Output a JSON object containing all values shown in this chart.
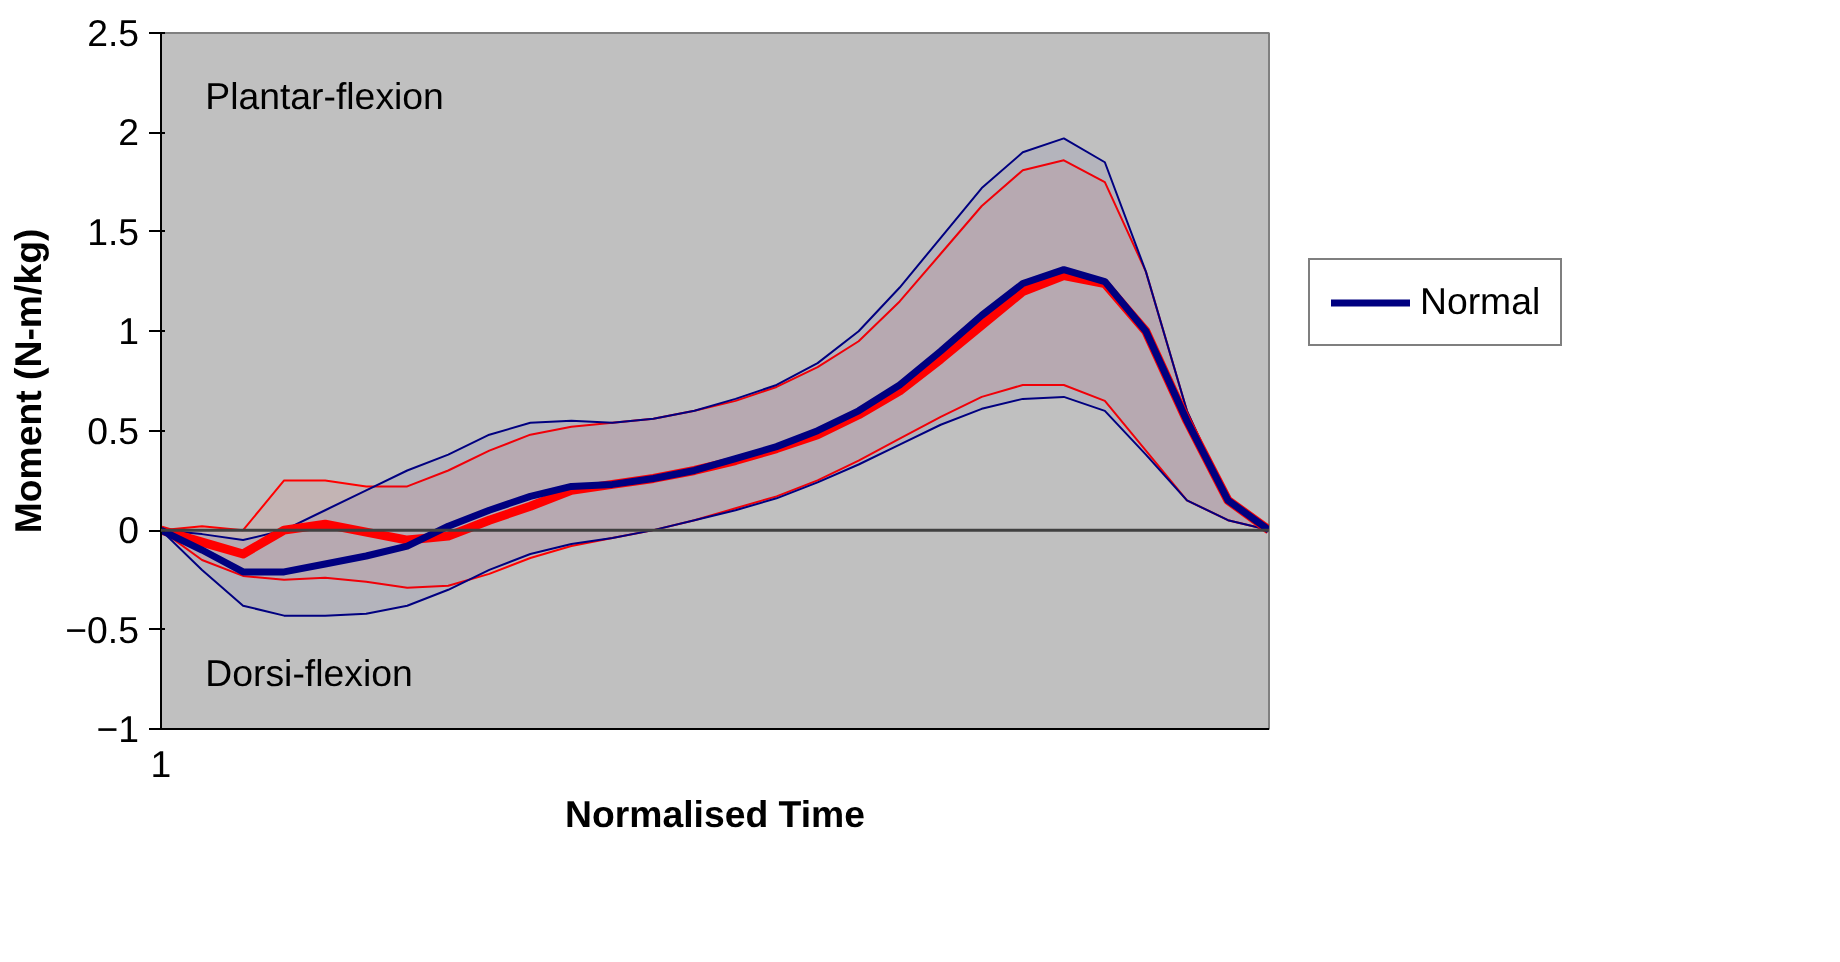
{
  "chart_data": {
    "type": "line",
    "xlabel": "Normalised Time",
    "ylabel": "Moment (N-m/kg)",
    "categories": [
      "1",
      null,
      null,
      null,
      null,
      null,
      null,
      null,
      null,
      null,
      null,
      null,
      null,
      null,
      null,
      null,
      null,
      null,
      null,
      null,
      null,
      null,
      null,
      null,
      null,
      null,
      null,
      null
    ],
    "series": [
      {
        "color": "#ff0000",
        "values": [
          0,
          -0.06,
          -0.12,
          0.0,
          0.03,
          -0.01,
          -0.05,
          -0.03,
          0.05,
          0.12,
          0.2,
          0.23,
          0.26,
          0.3,
          0.35,
          0.41,
          0.48,
          0.58,
          0.7,
          0.86,
          1.03,
          1.2,
          1.28,
          1.24,
          1.0,
          0.55,
          0.15,
          0
        ],
        "upper": [
          0,
          0.02,
          0.0,
          0.25,
          0.25,
          0.22,
          0.22,
          0.3,
          0.4,
          0.48,
          0.52,
          0.54,
          0.56,
          0.6,
          0.65,
          0.72,
          0.82,
          0.95,
          1.15,
          1.39,
          1.63,
          1.81,
          1.86,
          1.75,
          1.3,
          0.6,
          0.15,
          0
        ],
        "lower": [
          0,
          -0.15,
          -0.23,
          -0.25,
          -0.24,
          -0.26,
          -0.29,
          -0.28,
          -0.22,
          -0.14,
          -0.08,
          -0.04,
          0.0,
          0.05,
          0.11,
          0.17,
          0.25,
          0.35,
          0.46,
          0.57,
          0.67,
          0.73,
          0.73,
          0.65,
          0.4,
          0.15,
          0.05,
          0
        ]
      },
      {
        "name": "Normal",
        "color": "#000080",
        "values": [
          0,
          -0.1,
          -0.21,
          -0.21,
          -0.17,
          -0.13,
          -0.08,
          0.02,
          0.1,
          0.17,
          0.22,
          0.23,
          0.26,
          0.3,
          0.36,
          0.42,
          0.5,
          0.6,
          0.73,
          0.9,
          1.08,
          1.24,
          1.31,
          1.25,
          1.0,
          0.55,
          0.15,
          0
        ],
        "upper": [
          0,
          -0.02,
          -0.05,
          0.0,
          0.1,
          0.2,
          0.3,
          0.38,
          0.48,
          0.54,
          0.55,
          0.54,
          0.56,
          0.6,
          0.66,
          0.73,
          0.84,
          1.0,
          1.22,
          1.47,
          1.72,
          1.9,
          1.97,
          1.85,
          1.3,
          0.6,
          0.15,
          0
        ],
        "lower": [
          0,
          -0.2,
          -0.38,
          -0.43,
          -0.43,
          -0.42,
          -0.38,
          -0.3,
          -0.2,
          -0.12,
          -0.07,
          -0.04,
          0.0,
          0.05,
          0.1,
          0.16,
          0.24,
          0.33,
          0.43,
          0.53,
          0.61,
          0.66,
          0.67,
          0.6,
          0.38,
          0.15,
          0.05,
          0
        ]
      }
    ],
    "ylim": [
      -1,
      2.5
    ],
    "yticks": [
      -1,
      -0.5,
      0,
      0.5,
      1,
      1.5,
      2,
      2.5
    ],
    "ref_lines": [
      {
        "axis": "y",
        "value": 0
      }
    ],
    "annotations": [
      "Plantar-flexion",
      "Dorsi-flexion"
    ],
    "grid": false,
    "legend": "right",
    "marker": "none",
    "line_style": "solid"
  }
}
